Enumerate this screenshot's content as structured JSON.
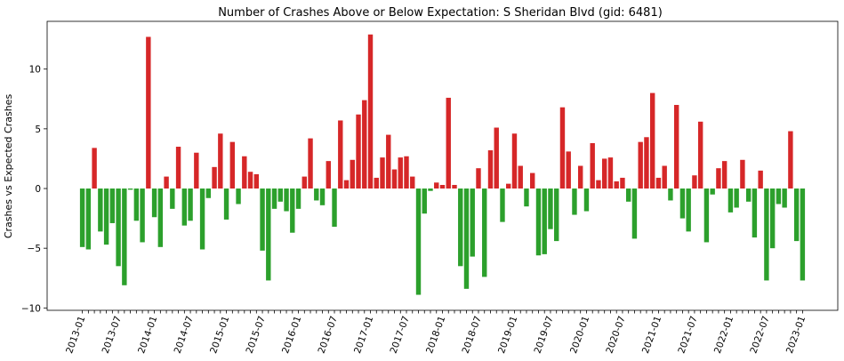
{
  "chart_data": {
    "type": "bar",
    "title": "Number of Crashes Above or Below Expectation: S Sheridan Blvd (gid: 6481)",
    "xlabel": "",
    "ylabel": "Crashes vs Expected Crashes",
    "ylim": [
      -10.2,
      14
    ],
    "yticks": [
      -10,
      -5,
      0,
      5,
      10
    ],
    "start_month": "2013-01",
    "x_tick_labels": [
      "2013-01",
      "2013-07",
      "2014-01",
      "2014-07",
      "2015-01",
      "2015-07",
      "2016-01",
      "2016-07",
      "2017-01",
      "2017-07",
      "2018-01",
      "2018-07",
      "2019-01",
      "2019-07",
      "2020-01",
      "2020-07",
      "2021-01",
      "2021-07",
      "2022-01",
      "2022-07",
      "2023-01"
    ],
    "positive_color": "#d62728",
    "negative_color": "#2ca02c",
    "values": [
      -4.9,
      -5.1,
      3.4,
      -3.6,
      -4.7,
      -2.9,
      -6.5,
      -8.1,
      -0.1,
      -2.7,
      -4.5,
      12.7,
      -2.4,
      -4.9,
      1.0,
      -1.7,
      3.5,
      -3.1,
      -2.7,
      3.0,
      -5.1,
      -0.8,
      1.8,
      4.6,
      -2.6,
      3.9,
      -1.3,
      2.7,
      1.4,
      1.2,
      -5.2,
      -7.7,
      -1.7,
      -1.1,
      -1.9,
      -3.7,
      -1.7,
      1.0,
      4.2,
      -1.0,
      -1.4,
      2.3,
      -3.2,
      5.7,
      0.7,
      2.4,
      6.2,
      7.4,
      12.9,
      0.9,
      2.6,
      4.5,
      1.6,
      2.6,
      2.7,
      1.0,
      -8.9,
      -2.1,
      -0.2,
      0.5,
      0.3,
      7.6,
      0.3,
      -6.5,
      -8.4,
      -5.7,
      1.7,
      -7.4,
      3.2,
      5.1,
      -2.8,
      0.4,
      4.6,
      1.9,
      -1.5,
      1.3,
      -5.6,
      -5.5,
      -3.4,
      -4.4,
      6.8,
      3.1,
      -2.2,
      1.9,
      -1.9,
      3.8,
      0.7,
      2.5,
      2.6,
      0.6,
      0.9,
      -1.1,
      -4.2,
      3.9,
      4.3,
      8.0,
      0.9,
      1.9,
      -1.0,
      7.0,
      -2.5,
      -3.6,
      1.1,
      5.6,
      -4.5,
      -0.5,
      1.7,
      2.3,
      -2.0,
      -1.6,
      2.4,
      -1.1,
      -4.1,
      1.5,
      -7.7,
      -5.0,
      -1.3,
      -1.6,
      4.8,
      -4.4,
      -7.7
    ]
  }
}
